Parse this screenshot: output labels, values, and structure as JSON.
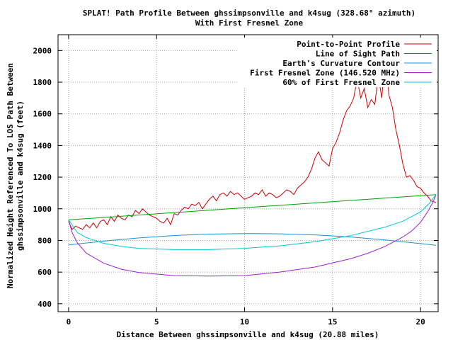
{
  "chart_data": {
    "type": "line",
    "title": "SPLAT! Path Profile Between ghssimpsonville and k4sug (328.68° azimuth)",
    "subtitle": "With First Fresnel Zone",
    "xlabel": "Distance Between ghssimpsonville and k4sug (20.88 miles)",
    "ylabel_line1": "Normalized Height Referenced To LOS Path Between",
    "ylabel_line2": "ghssimpsonville and k4sug (feet)",
    "xlim": [
      -0.6,
      21.0
    ],
    "ylim": [
      350,
      2100
    ],
    "x_ticks": [
      0,
      5,
      10,
      15,
      20
    ],
    "y_ticks": [
      400,
      600,
      800,
      1000,
      1200,
      1400,
      1600,
      1800,
      2000
    ],
    "grid": true,
    "legend_position": "top-right",
    "colors": {
      "profile": "#cc0000",
      "los": "#00a000",
      "curvature": "#1f8fd0",
      "fresnel": "#a020d0",
      "fresnel60": "#00c8d8"
    },
    "series": [
      {
        "name": "Point-to-Point Profile",
        "x": [
          0,
          0.2,
          0.4,
          0.6,
          0.8,
          1.0,
          1.2,
          1.4,
          1.6,
          1.8,
          2.0,
          2.2,
          2.4,
          2.6,
          2.8,
          3.0,
          3.2,
          3.4,
          3.6,
          3.8,
          4.0,
          4.2,
          4.4,
          4.6,
          4.8,
          5.0,
          5.2,
          5.4,
          5.6,
          5.8,
          6.0,
          6.2,
          6.4,
          6.6,
          6.8,
          7.0,
          7.2,
          7.4,
          7.6,
          7.8,
          8.0,
          8.2,
          8.4,
          8.6,
          8.8,
          9.0,
          9.2,
          9.4,
          9.6,
          9.8,
          10.0,
          10.2,
          10.4,
          10.6,
          10.8,
          11.0,
          11.2,
          11.4,
          11.6,
          11.8,
          12.0,
          12.2,
          12.4,
          12.6,
          12.8,
          13.0,
          13.2,
          13.4,
          13.6,
          13.8,
          14.0,
          14.2,
          14.4,
          14.6,
          14.8,
          15.0,
          15.2,
          15.4,
          15.6,
          15.8,
          16.0,
          16.2,
          16.4,
          16.6,
          16.8,
          17.0,
          17.2,
          17.4,
          17.6,
          17.8,
          18.0,
          18.2,
          18.4,
          18.6,
          18.8,
          19.0,
          19.2,
          19.4,
          19.6,
          19.8,
          20.0,
          20.2,
          20.4,
          20.6,
          20.88
        ],
        "values": [
          920,
          870,
          890,
          880,
          870,
          900,
          880,
          910,
          880,
          920,
          930,
          900,
          950,
          920,
          960,
          940,
          930,
          960,
          950,
          990,
          970,
          1000,
          980,
          960,
          950,
          940,
          920,
          910,
          940,
          900,
          970,
          960,
          990,
          1010,
          1000,
          1030,
          1020,
          1040,
          1000,
          1030,
          1060,
          1080,
          1050,
          1090,
          1100,
          1080,
          1110,
          1090,
          1100,
          1080,
          1060,
          1070,
          1080,
          1100,
          1090,
          1120,
          1080,
          1100,
          1090,
          1070,
          1080,
          1100,
          1120,
          1110,
          1090,
          1130,
          1150,
          1170,
          1200,
          1250,
          1320,
          1360,
          1310,
          1290,
          1270,
          1380,
          1420,
          1480,
          1560,
          1620,
          1650,
          1700,
          1820,
          1700,
          1760,
          1640,
          1690,
          1660,
          1840,
          1700,
          2000,
          1720,
          1640,
          1500,
          1400,
          1280,
          1200,
          1210,
          1180,
          1140,
          1130,
          1100,
          1080,
          1050,
          1040
        ]
      },
      {
        "name": "Line of Sight Path",
        "x": [
          0,
          20.88
        ],
        "values": [
          930,
          1090
        ]
      },
      {
        "name": "Earth's Curvature Contour",
        "x": [
          0,
          2,
          4,
          6,
          8,
          10,
          10.44,
          12,
          14,
          16,
          18,
          20,
          20.88
        ],
        "values": [
          772,
          796,
          816,
          831,
          840,
          843,
          843,
          842,
          835,
          822,
          803,
          780,
          770
        ]
      },
      {
        "name": "First Fresnel Zone (146.520 MHz)",
        "x": [
          0,
          0.2,
          0.5,
          1,
          2,
          3,
          4,
          6,
          8,
          10,
          12,
          14,
          16,
          17,
          18,
          19,
          19.5,
          20,
          20.4,
          20.7,
          20.88
        ],
        "values": [
          930,
          850,
          785,
          720,
          656,
          618,
          597,
          578,
          575,
          578,
          600,
          632,
          684,
          719,
          763,
          822,
          860,
          915,
          980,
          1040,
          1090
        ]
      },
      {
        "name": "60% of First Fresnel Zone",
        "x": [
          0,
          0.5,
          1,
          2,
          3,
          4,
          6,
          8,
          10,
          12,
          14,
          16,
          18,
          19,
          20,
          20.5,
          20.88
        ],
        "values": [
          930,
          850,
          818,
          782,
          762,
          750,
          742,
          742,
          750,
          766,
          792,
          830,
          885,
          922,
          980,
          1035,
          1090
        ]
      }
    ]
  }
}
